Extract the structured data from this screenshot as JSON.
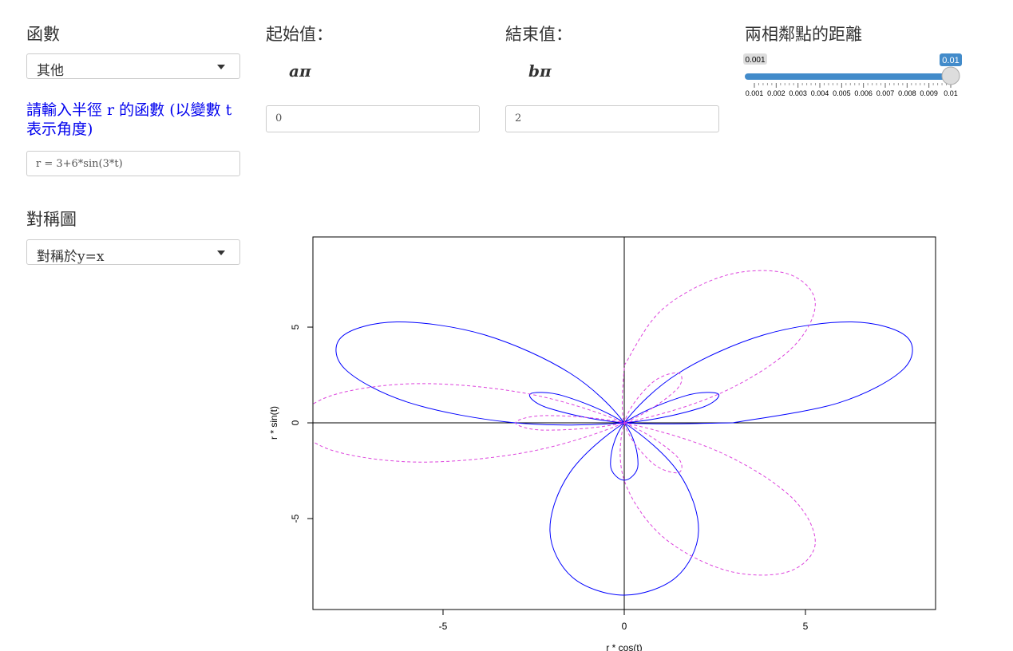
{
  "controls": {
    "function_label": "函數",
    "function_select": "其他",
    "formula_label": "請輸入半徑 r 的函數 (以變數 t 表示角度)",
    "formula_input": "r = 3+6*sin(3*t)",
    "symmetry_label": "對稱圖",
    "symmetry_select": "對稱於y=x",
    "start_label": "起始值：",
    "start_unit": "aπ",
    "start_input": 0,
    "end_label": "結束值：",
    "end_unit": "bπ",
    "end_input": 2,
    "slider": {
      "label": "兩相鄰點的距離",
      "min": 0.001,
      "max": 0.01,
      "value": 0.01,
      "ticks": [
        0.001,
        0.002,
        0.003,
        0.004,
        0.005,
        0.006,
        0.007,
        0.008,
        0.009,
        0.01
      ]
    }
  },
  "chart_data": {
    "type": "line",
    "xlabel": "r * cos(t)",
    "ylabel": "r * sin(t)",
    "xlim": [
      -8.59,
      8.59
    ],
    "ylim": [
      -9.75,
      9.71
    ],
    "xticks": [
      -5,
      0,
      5
    ],
    "yticks": [
      -5,
      0,
      5
    ],
    "series": [
      {
        "color": "#0000ff",
        "line_style": "solid",
        "x": [
          3,
          5.91,
          7.7,
          7.79,
          6.28,
          3.86,
          1.5,
          0,
          -0.38,
          0,
          0.38,
          0,
          -1.5,
          -3.86,
          -6.28,
          -7.79,
          -7.7,
          -5.91,
          -3,
          0,
          2.06,
          2.6,
          1.68,
          0,
          -1.5,
          -2.05,
          -1.43,
          0,
          1.43,
          2.05,
          1.5,
          0,
          -1.68,
          -2.6,
          -2.06,
          0,
          3
        ],
        "y": [
          0,
          1.04,
          2.8,
          4.5,
          5.27,
          4.6,
          2.6,
          0,
          -2.16,
          -3,
          -2.16,
          0,
          2.6,
          4.6,
          5.27,
          4.5,
          2.8,
          1.04,
          0,
          0,
          0.75,
          1.5,
          1.41,
          0,
          -2.6,
          -5.64,
          -8.07,
          -9,
          -8.07,
          -5.64,
          -2.6,
          0,
          1.41,
          1.5,
          0.75,
          0,
          0
        ]
      },
      {
        "color": "#dd44dd",
        "line_style": "dashed",
        "x": [
          0,
          1.04,
          2.8,
          4.5,
          5.27,
          4.6,
          2.6,
          0,
          -2.16,
          -3,
          -2.16,
          0,
          2.6,
          4.6,
          5.27,
          4.5,
          2.8,
          1.04,
          0,
          0,
          0.75,
          1.5,
          1.41,
          0,
          -2.6,
          -5.64,
          -8.07,
          -9,
          -8.07,
          -5.64,
          -2.6,
          0,
          1.41,
          1.5,
          0.75,
          0,
          0
        ],
        "y": [
          3,
          5.91,
          7.7,
          7.79,
          6.28,
          3.86,
          1.5,
          0,
          -0.38,
          0,
          0.38,
          0,
          -1.5,
          -3.86,
          -6.28,
          -7.79,
          -7.7,
          -5.91,
          -3,
          0,
          2.06,
          2.6,
          1.68,
          0,
          -1.5,
          -2.05,
          -1.43,
          0,
          1.43,
          2.05,
          1.5,
          0,
          -1.68,
          -2.6,
          -2.06,
          0,
          3
        ]
      }
    ]
  }
}
